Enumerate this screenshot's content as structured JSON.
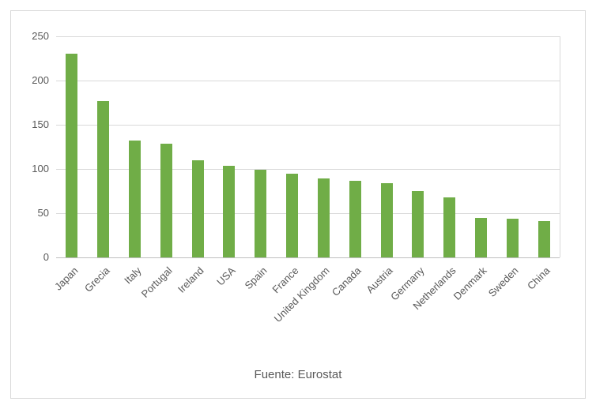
{
  "caption": "Fuente: Eurostat",
  "colors": {
    "bar": "#70AD47",
    "grid": "#d9d9d9",
    "axis_line": "#bfbfbf",
    "axis_text": "#595959",
    "frame_border": "#d9d9d9"
  },
  "chart_data": {
    "type": "bar",
    "title": "",
    "xlabel": "",
    "ylabel": "",
    "categories": [
      "Japan",
      "Grecia",
      "Italy",
      "Portugal",
      "Ireland",
      "USA",
      "Spain",
      "France",
      "United Kingdom",
      "Canada",
      "Austria",
      "Germany",
      "Netherlands",
      "Denmark",
      "Sweden",
      "China"
    ],
    "values": [
      230,
      177,
      132,
      129,
      110,
      104,
      99,
      95,
      89,
      87,
      84,
      75,
      68,
      45,
      44,
      41
    ],
    "ylim": [
      0,
      250
    ],
    "yticks": [
      0,
      50,
      100,
      150,
      200,
      250
    ],
    "grid": true,
    "legend_position": "none",
    "annotation": "Fuente: Eurostat"
  }
}
